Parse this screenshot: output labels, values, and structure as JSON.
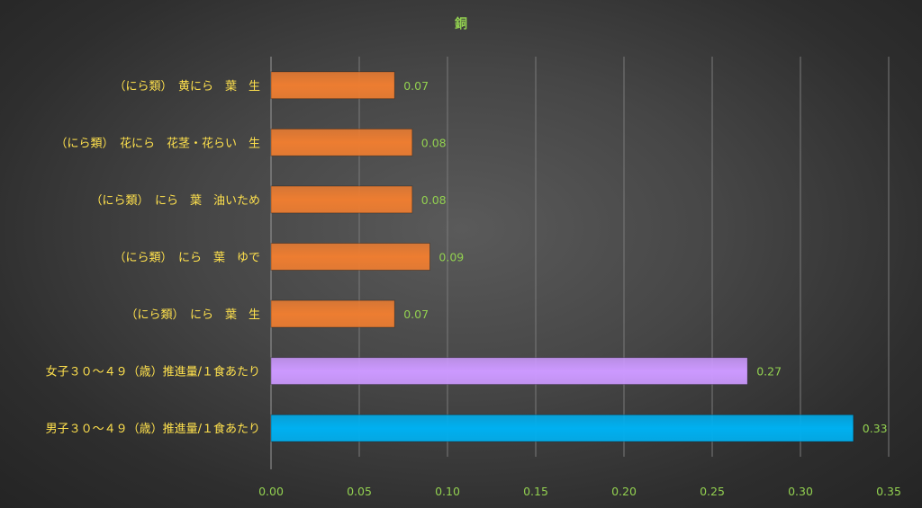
{
  "chart_data": {
    "type": "bar",
    "orientation": "horizontal",
    "title": "銅",
    "categories": [
      "（にら類）　黄にら　葉　生",
      "（にら類）　花にら　花茎・花らい　生",
      "（にら類）　にら　葉　油いため",
      "（にら類）　にら　葉　ゆで",
      "（にら類）　にら　葉　生",
      "女子３０～４９（歳）推進量/１食あたり",
      "男子３０～４９（歳）推進量/１食あたり"
    ],
    "values": [
      0.07,
      0.08,
      0.08,
      0.09,
      0.07,
      0.27,
      0.33
    ],
    "data_labels": [
      "0.07",
      "0.08",
      "0.08",
      "0.09",
      "0.07",
      "0.27",
      "0.33"
    ],
    "bar_colors": [
      "#ed7d31",
      "#ed7d31",
      "#ed7d31",
      "#ed7d31",
      "#ed7d31",
      "#cc99ff",
      "#00b0f0"
    ],
    "xlim": [
      0,
      0.35
    ],
    "x_ticks": [
      "0.00",
      "0.05",
      "0.10",
      "0.15",
      "0.20",
      "0.25",
      "0.30",
      "0.35"
    ],
    "grid": true,
    "legend": "none"
  }
}
